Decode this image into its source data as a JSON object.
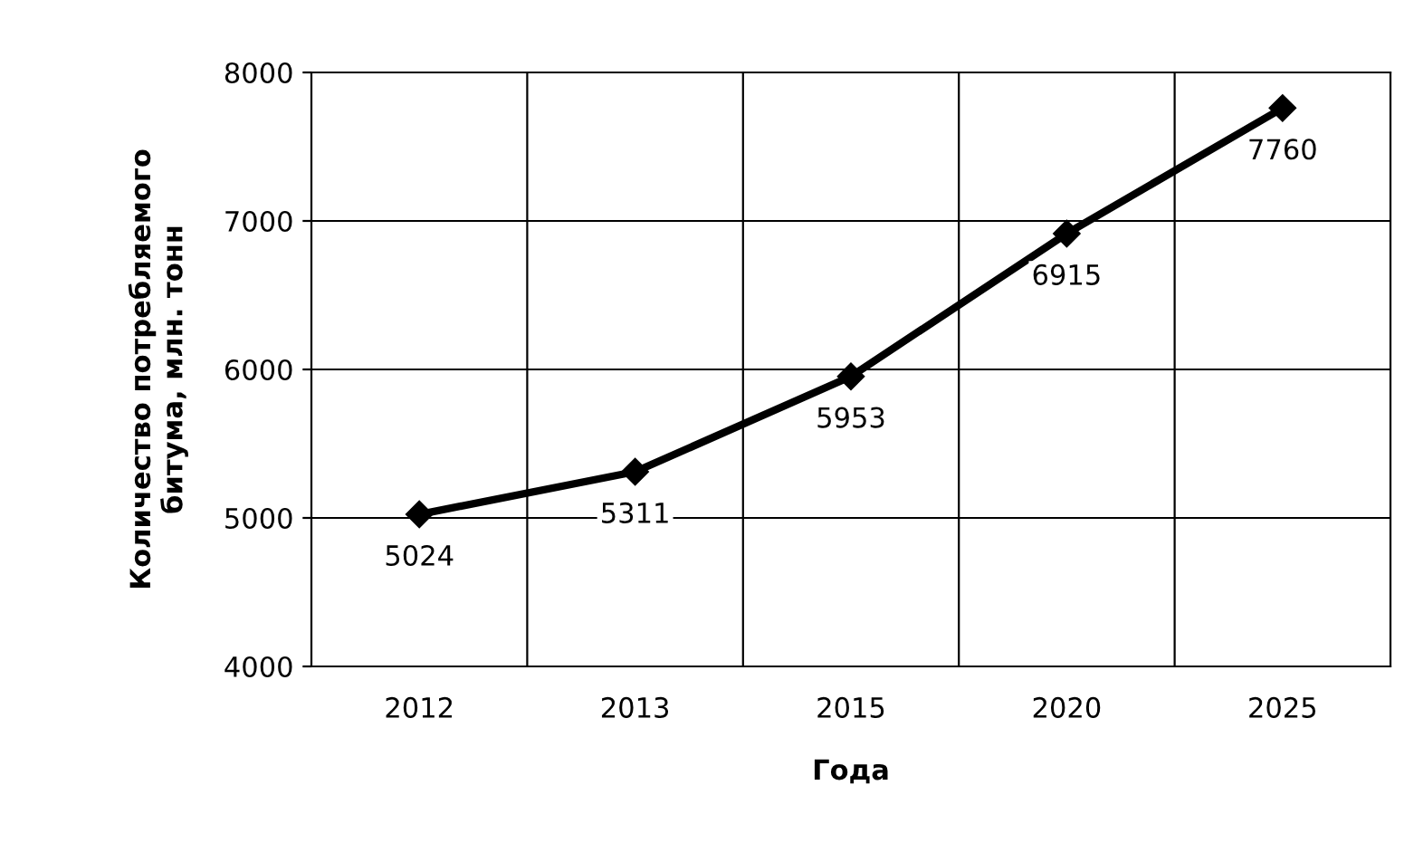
{
  "chart_data": {
    "type": "line",
    "xlabel": "Года",
    "ylabel": "Количество потребляемого\nбитума, млн. тонн",
    "categories": [
      "2012",
      "2013",
      "2015",
      "2020",
      "2025"
    ],
    "series": [
      {
        "color": "#000000",
        "values": [
          5024,
          5311,
          5953,
          6915,
          7760
        ]
      }
    ],
    "ylim": [
      4000,
      8000
    ],
    "yticks": [
      4000,
      5000,
      6000,
      7000,
      8000
    ],
    "grid": true,
    "marker": "diamond",
    "line_style": "solid",
    "data_labels": true
  }
}
